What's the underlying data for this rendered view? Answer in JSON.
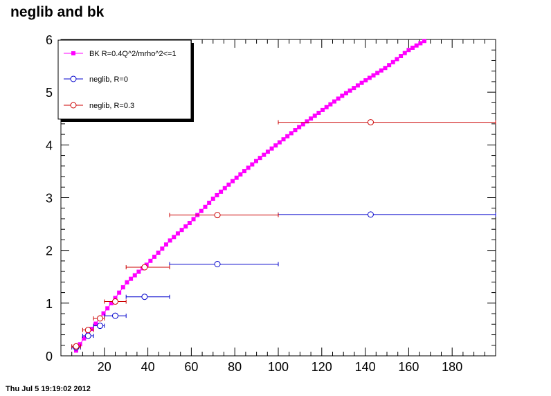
{
  "page": {
    "title": "neglib and bk",
    "datestamp": "Thu Jul  5 19:19:02 2012"
  },
  "chart_data": {
    "type": "scatter",
    "title": "neglib and bk",
    "xlabel": "",
    "ylabel": "",
    "xlim": [
      0,
      200
    ],
    "ylim": [
      0,
      6
    ],
    "x_ticks": [
      20,
      40,
      60,
      80,
      100,
      120,
      140,
      160,
      180
    ],
    "y_ticks": [
      0,
      1,
      2,
      3,
      4,
      5,
      6
    ],
    "grid": false,
    "legend_position": "top-left",
    "series": [
      {
        "name": "BK R=0.4Q^2/mrho^2<=1",
        "color": "#ff00ff",
        "marker": "square",
        "line": true,
        "x_start": 7,
        "x_step": 1.8,
        "count": 90,
        "y_formula": "piecewise",
        "knots": [
          [
            7,
            0.1
          ],
          [
            10,
            0.3
          ],
          [
            14,
            0.5
          ],
          [
            18,
            0.72
          ],
          [
            24,
            1.04
          ],
          [
            30,
            1.38
          ],
          [
            40,
            1.75
          ],
          [
            50,
            2.18
          ],
          [
            60,
            2.55
          ],
          [
            70,
            2.98
          ],
          [
            80,
            3.35
          ],
          [
            90,
            3.7
          ],
          [
            100,
            4.03
          ],
          [
            110,
            4.35
          ],
          [
            120,
            4.65
          ],
          [
            130,
            4.95
          ],
          [
            140,
            5.22
          ],
          [
            150,
            5.48
          ],
          [
            160,
            5.8
          ],
          [
            168,
            5.99
          ]
        ]
      },
      {
        "name": "neglib, R=0",
        "color": "#0000cc",
        "marker": "open-circle",
        "points": [
          {
            "x": 7,
            "y": 0.16,
            "xlo": 5,
            "xhi": 9
          },
          {
            "x": 12.5,
            "y": 0.38,
            "xlo": 10,
            "xhi": 15
          },
          {
            "x": 18,
            "y": 0.57,
            "xlo": 15,
            "xhi": 20
          },
          {
            "x": 25,
            "y": 0.76,
            "xlo": 20,
            "xhi": 30
          },
          {
            "x": 38.5,
            "y": 1.12,
            "xlo": 30,
            "xhi": 50
          },
          {
            "x": 72,
            "y": 1.74,
            "xlo": 50,
            "xhi": 100
          },
          {
            "x": 142.5,
            "y": 2.68,
            "xlo": 100,
            "xhi": 200
          }
        ]
      },
      {
        "name": "neglib, R=0.3",
        "color": "#cc0000",
        "marker": "open-circle",
        "points": [
          {
            "x": 7,
            "y": 0.18,
            "xlo": 5,
            "xhi": 9
          },
          {
            "x": 12.5,
            "y": 0.49,
            "xlo": 10,
            "xhi": 15
          },
          {
            "x": 18,
            "y": 0.71,
            "xlo": 15,
            "xhi": 20
          },
          {
            "x": 25,
            "y": 1.03,
            "xlo": 20,
            "xhi": 30
          },
          {
            "x": 38.5,
            "y": 1.68,
            "xlo": 30,
            "xhi": 50
          },
          {
            "x": 72,
            "y": 2.67,
            "xlo": 50,
            "xhi": 100
          },
          {
            "x": 142.5,
            "y": 4.43,
            "xlo": 100,
            "xhi": 200
          }
        ]
      }
    ]
  }
}
